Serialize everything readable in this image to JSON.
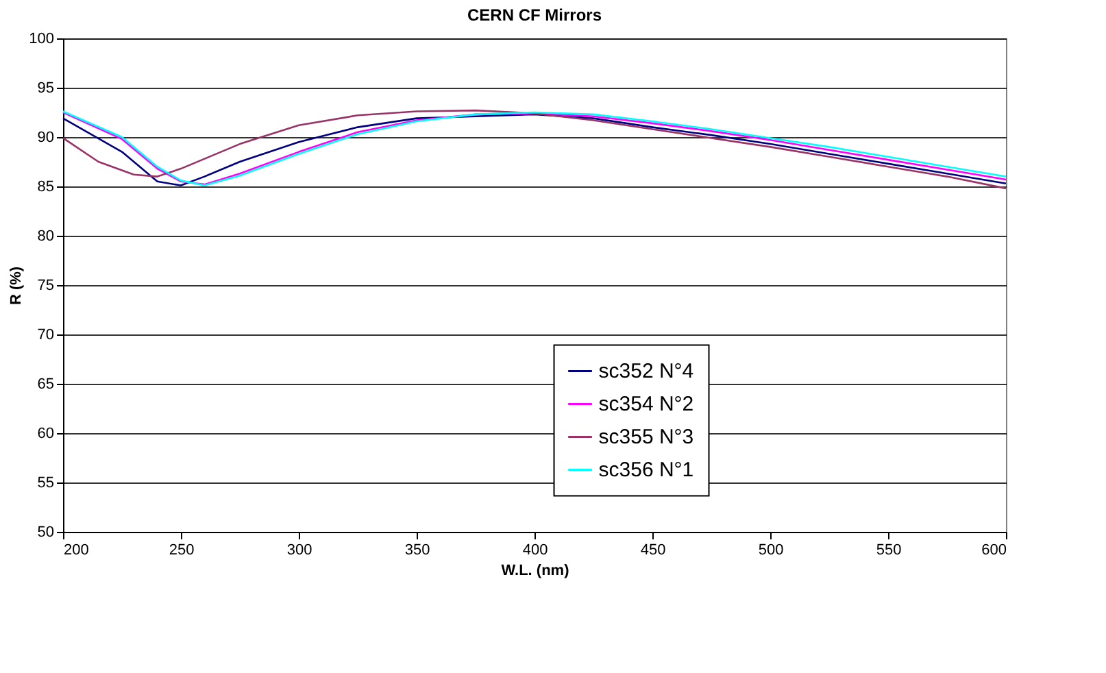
{
  "chart_data": {
    "type": "line",
    "title": "CERN CF Mirrors",
    "xlabel": "W.L. (nm)",
    "ylabel": "R (%)",
    "xlim": [
      200,
      600
    ],
    "xticks": [
      200,
      250,
      300,
      350,
      400,
      450,
      500,
      550,
      600
    ],
    "ylim": [
      50,
      100
    ],
    "yticks": [
      50,
      55,
      60,
      65,
      70,
      75,
      80,
      85,
      90,
      95,
      100
    ],
    "grid": "y",
    "legend": "right",
    "marker": "none",
    "line_style": "solid",
    "series": [
      {
        "name": "sc352 N°4",
        "color": "#000080",
        "x": [
          200,
          225,
          240,
          250,
          260,
          275,
          300,
          325,
          350,
          375,
          400,
          425,
          450,
          475,
          500,
          525,
          550,
          575,
          600
        ],
        "values": [
          91.9,
          88.5,
          85.5,
          85.1,
          86.0,
          87.5,
          89.5,
          91.0,
          91.9,
          92.1,
          92.3,
          91.9,
          91.0,
          90.2,
          89.3,
          88.3,
          87.3,
          86.3,
          85.3
        ]
      },
      {
        "name": "sc354 N°2",
        "color": "#ff00ff",
        "x": [
          200,
          225,
          240,
          250,
          260,
          275,
          300,
          325,
          350,
          375,
          400,
          425,
          450,
          475,
          500,
          525,
          550,
          575,
          600
        ],
        "values": [
          92.5,
          89.8,
          86.8,
          85.5,
          85.2,
          86.3,
          88.5,
          90.5,
          91.7,
          92.3,
          92.4,
          92.1,
          91.4,
          90.6,
          89.7,
          88.7,
          87.7,
          86.7,
          85.7
        ]
      },
      {
        "name": "sc355 N°3",
        "color": "#993366",
        "x": [
          200,
          215,
          230,
          240,
          250,
          275,
          300,
          325,
          350,
          375,
          400,
          425,
          450,
          475,
          500,
          525,
          550,
          575,
          600
        ],
        "values": [
          89.9,
          87.5,
          86.2,
          86.0,
          86.8,
          89.3,
          91.2,
          92.2,
          92.6,
          92.7,
          92.4,
          91.7,
          90.8,
          89.9,
          89.0,
          88.0,
          87.0,
          86.0,
          84.8
        ]
      },
      {
        "name": "sc356 N°1",
        "color": "#00ffff",
        "x": [
          200,
          225,
          240,
          250,
          260,
          275,
          300,
          325,
          350,
          375,
          400,
          425,
          450,
          475,
          500,
          525,
          550,
          575,
          600
        ],
        "values": [
          92.6,
          90.0,
          87.0,
          85.6,
          85.1,
          86.1,
          88.3,
          90.3,
          91.6,
          92.3,
          92.5,
          92.3,
          91.6,
          90.8,
          89.9,
          89.0,
          88.0,
          87.0,
          86.0
        ]
      }
    ]
  }
}
